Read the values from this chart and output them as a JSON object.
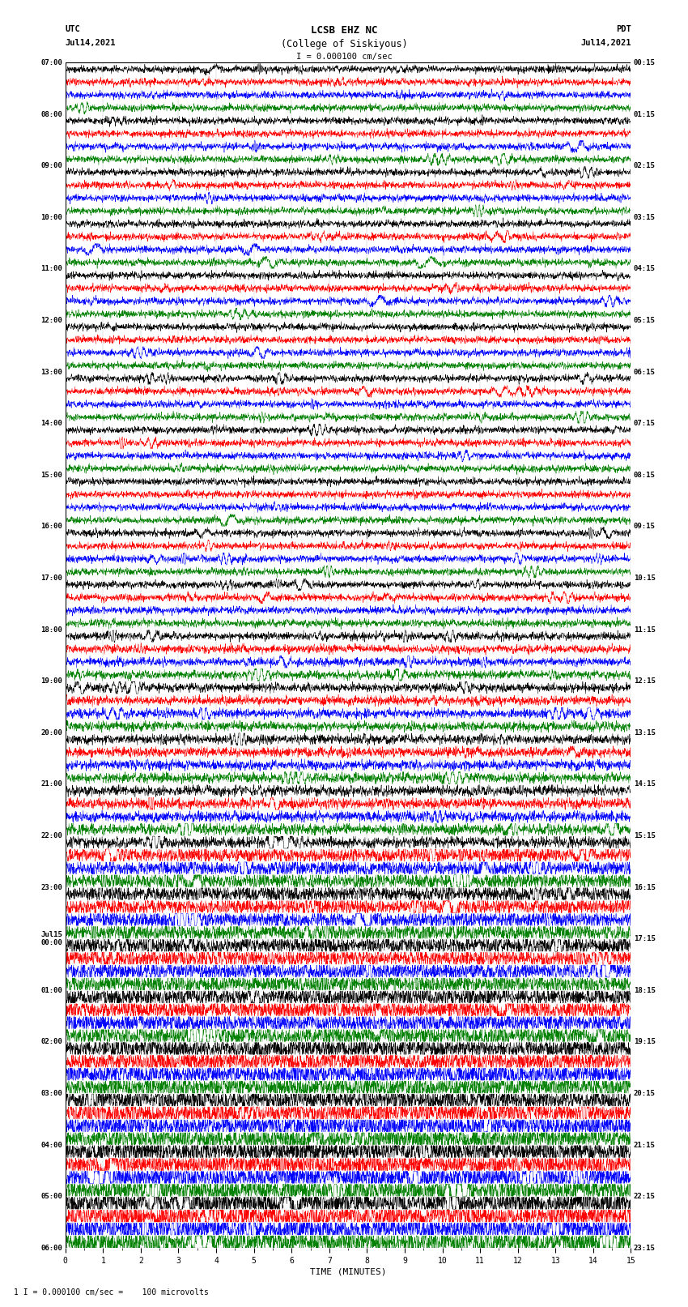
{
  "title_line1": "LCSB EHZ NC",
  "title_line2": "(College of Siskiyous)",
  "title_scale": "I = 0.000100 cm/sec",
  "left_label_top": "UTC",
  "left_label_date": "Jul14,2021",
  "right_label_top": "PDT",
  "right_label_date": "Jul14,2021",
  "xlabel": "TIME (MINUTES)",
  "footnote": "1 I = 0.000100 cm/sec =    100 microvolts",
  "n_rows": 92,
  "colors": [
    "black",
    "red",
    "blue",
    "green"
  ],
  "fig_width": 8.5,
  "fig_height": 16.13,
  "dpi": 100,
  "xlim": [
    0,
    15
  ],
  "xticks": [
    0,
    1,
    2,
    3,
    4,
    5,
    6,
    7,
    8,
    9,
    10,
    11,
    12,
    13,
    14,
    15
  ],
  "left_hour_labels": [
    [
      "07:00",
      0
    ],
    [
      "08:00",
      4
    ],
    [
      "09:00",
      8
    ],
    [
      "10:00",
      12
    ],
    [
      "11:00",
      16
    ],
    [
      "12:00",
      20
    ],
    [
      "13:00",
      24
    ],
    [
      "14:00",
      28
    ],
    [
      "15:00",
      32
    ],
    [
      "16:00",
      36
    ],
    [
      "17:00",
      40
    ],
    [
      "18:00",
      44
    ],
    [
      "19:00",
      48
    ],
    [
      "20:00",
      52
    ],
    [
      "21:00",
      56
    ],
    [
      "22:00",
      60
    ],
    [
      "23:00",
      64
    ],
    [
      "Jul15\n00:00",
      68
    ],
    [
      "01:00",
      72
    ],
    [
      "02:00",
      76
    ],
    [
      "03:00",
      80
    ],
    [
      "04:00",
      84
    ],
    [
      "05:00",
      88
    ],
    [
      "06:00",
      92
    ]
  ],
  "right_hour_labels": [
    [
      "00:15",
      0
    ],
    [
      "01:15",
      4
    ],
    [
      "02:15",
      8
    ],
    [
      "03:15",
      12
    ],
    [
      "04:15",
      16
    ],
    [
      "05:15",
      20
    ],
    [
      "06:15",
      24
    ],
    [
      "07:15",
      28
    ],
    [
      "08:15",
      32
    ],
    [
      "09:15",
      36
    ],
    [
      "10:15",
      40
    ],
    [
      "11:15",
      44
    ],
    [
      "12:15",
      48
    ],
    [
      "13:15",
      52
    ],
    [
      "14:15",
      56
    ],
    [
      "15:15",
      60
    ],
    [
      "16:15",
      64
    ],
    [
      "17:15",
      68
    ],
    [
      "18:15",
      72
    ],
    [
      "19:15",
      76
    ],
    [
      "20:15",
      80
    ],
    [
      "21:15",
      84
    ],
    [
      "22:15",
      88
    ],
    [
      "23:15",
      92
    ]
  ],
  "background_color": "white",
  "seed": 12345
}
